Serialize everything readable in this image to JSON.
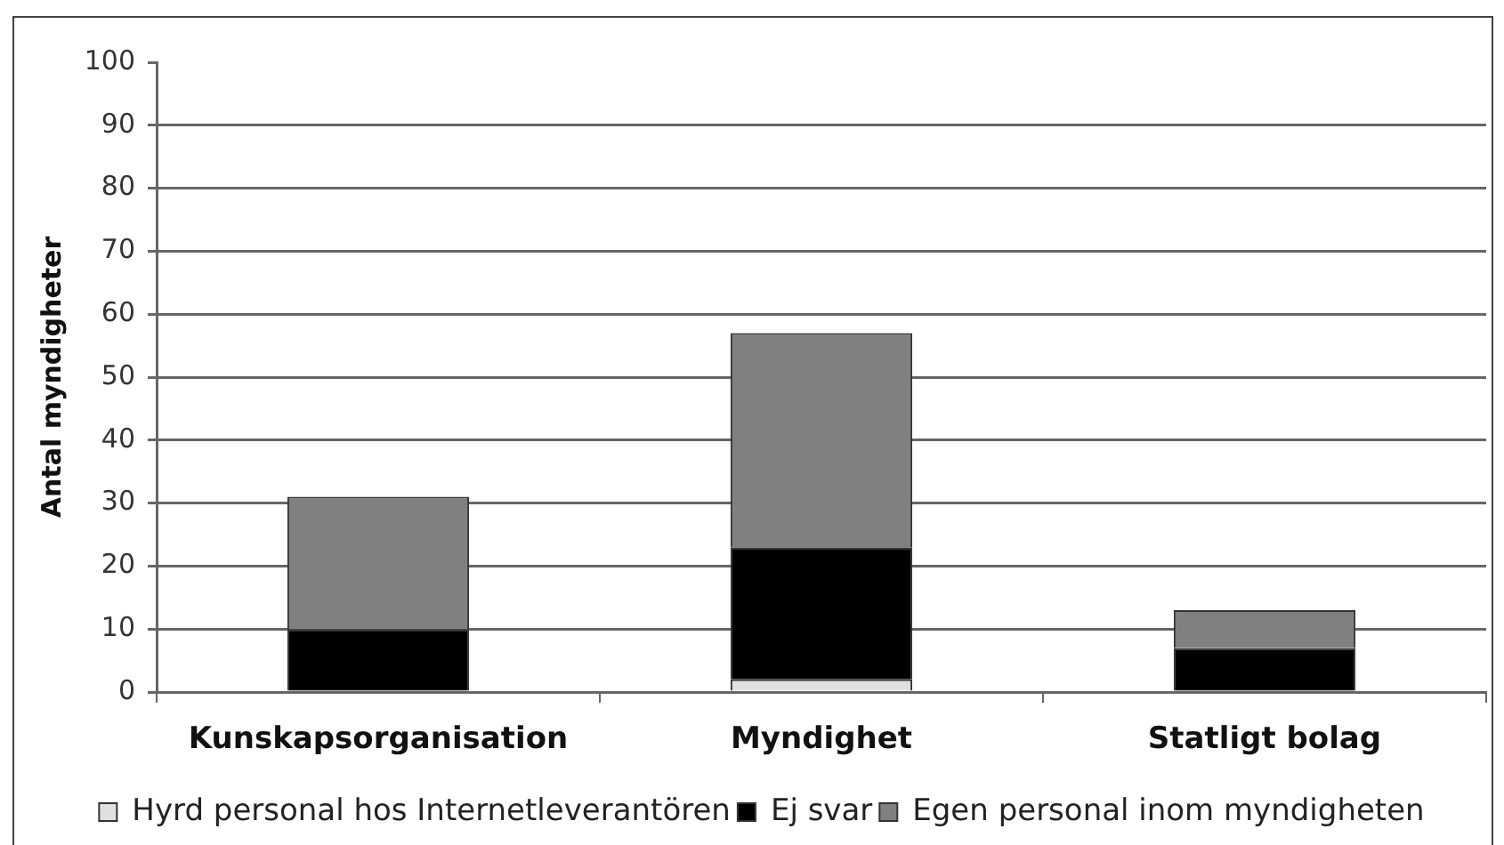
{
  "chart_data": {
    "type": "bar",
    "stacked": true,
    "categories": [
      "Kunskapsorganisation",
      "Myndighet",
      "Statligt bolag"
    ],
    "series": [
      {
        "name": "Hyrd personal hos Internetleverantören",
        "color": "#e0e0e0",
        "values": [
          0,
          2,
          0
        ]
      },
      {
        "name": "Ej svar",
        "color": "#000000",
        "values": [
          10,
          21,
          7
        ]
      },
      {
        "name": "Egen personal inom myndigheten",
        "color": "#808080",
        "values": [
          21,
          34,
          6
        ]
      }
    ],
    "ylabel": "Antal myndigheter",
    "ylim": [
      0,
      100
    ],
    "yticks": [
      0,
      10,
      20,
      30,
      40,
      50,
      60,
      70,
      80,
      90,
      100
    ],
    "grid": "y",
    "legend": "bottom"
  }
}
